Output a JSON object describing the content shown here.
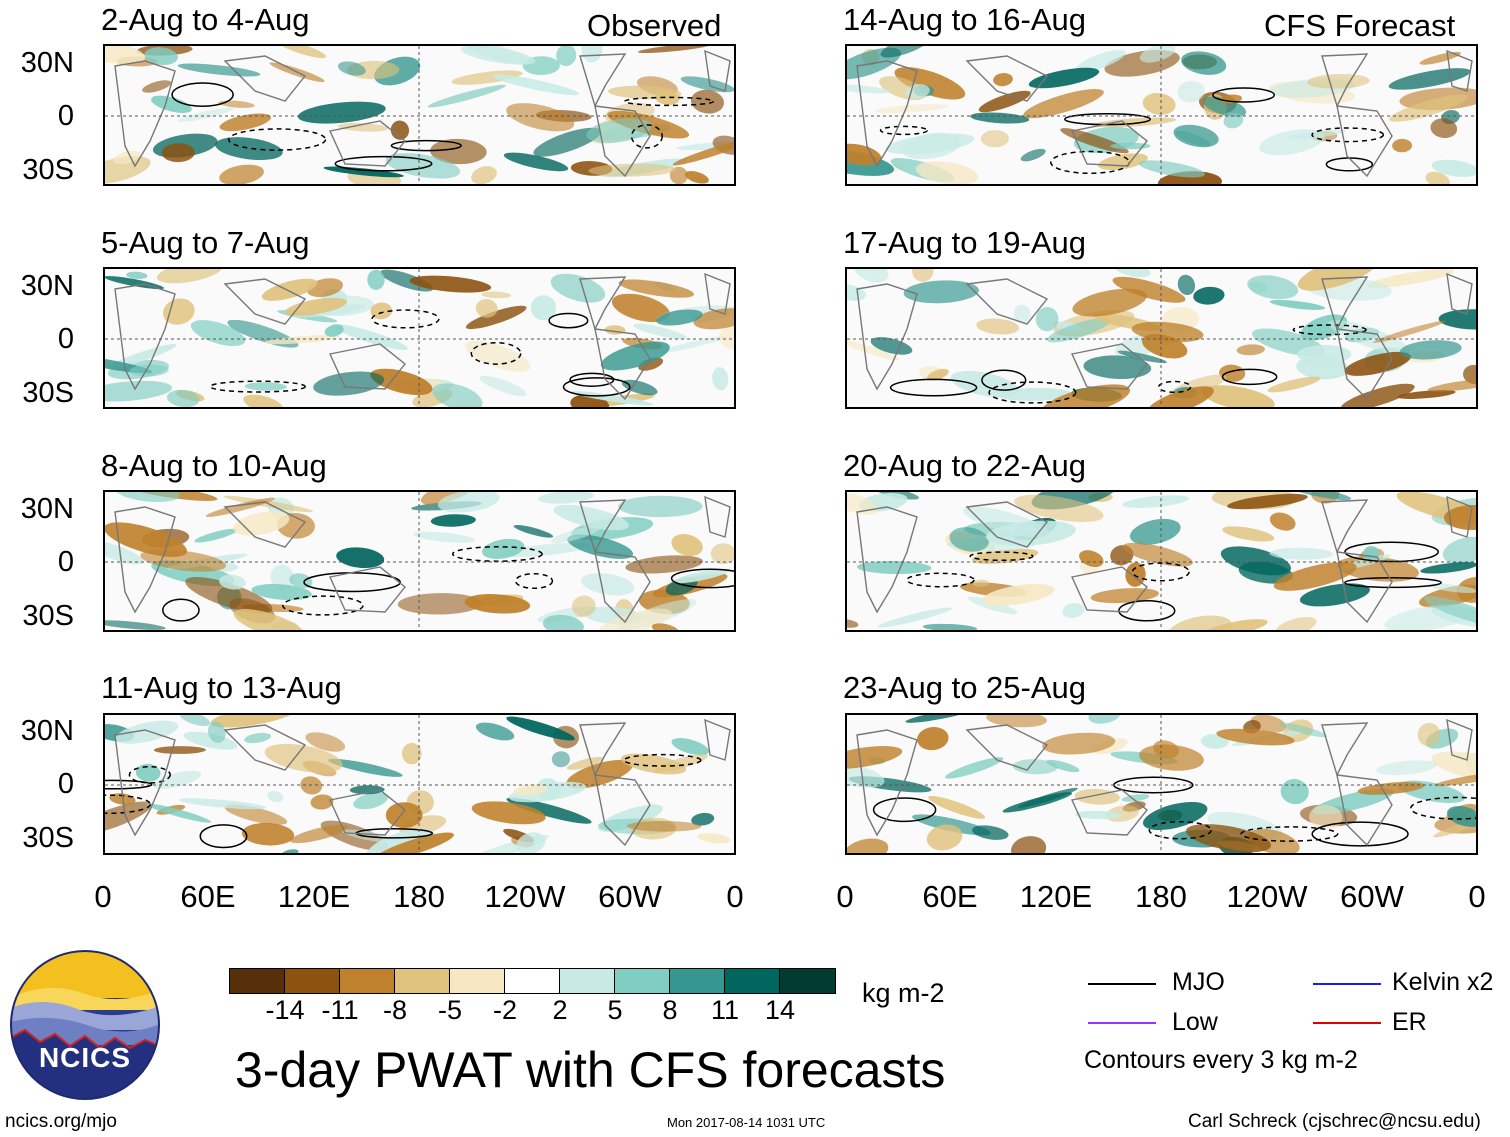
{
  "header": {
    "left_label": "Observed",
    "right_label": "CFS Forecast"
  },
  "panels": {
    "observed": [
      {
        "title": "2-Aug to 4-Aug"
      },
      {
        "title": "5-Aug to 7-Aug"
      },
      {
        "title": "8-Aug to 10-Aug"
      },
      {
        "title": "11-Aug to 13-Aug"
      }
    ],
    "forecast": [
      {
        "title": "14-Aug to 16-Aug"
      },
      {
        "title": "17-Aug to 19-Aug"
      },
      {
        "title": "20-Aug to 22-Aug"
      },
      {
        "title": "23-Aug to 25-Aug"
      }
    ]
  },
  "axes": {
    "lat_labels": [
      "30N",
      "0",
      "30S"
    ],
    "lon_labels": [
      "0",
      "60E",
      "120E",
      "180",
      "120W",
      "60W",
      "0"
    ]
  },
  "colorbar": {
    "colors": [
      "#573009",
      "#8c5210",
      "#bf812c",
      "#dfc27d",
      "#f6e8c3",
      "#ffffff",
      "#c7eae5",
      "#80cdc1",
      "#35978f",
      "#01665e",
      "#003c30"
    ],
    "tick_labels": [
      "-14",
      "-11",
      "-8",
      "-5",
      "-2",
      "2",
      "5",
      "8",
      "11",
      "14"
    ],
    "units": "kg m-2"
  },
  "legend": {
    "items": [
      {
        "label": "MJO",
        "color": "#000000"
      },
      {
        "label": "Kelvin x2",
        "color": "#1a1aff"
      },
      {
        "label": "Low",
        "color": "#9933ff"
      },
      {
        "label": "ER",
        "color": "#e00000"
      }
    ],
    "note": "Contours every 3 kg m-2"
  },
  "main_title": "3-day PWAT with CFS forecasts",
  "logo_text": "NCICS",
  "footer": {
    "url": "ncics.org/mjo",
    "timestamp": "Mon 2017-08-14 1031 UTC",
    "author": "Carl Schreck (cjschrec@ncsu.edu)"
  }
}
